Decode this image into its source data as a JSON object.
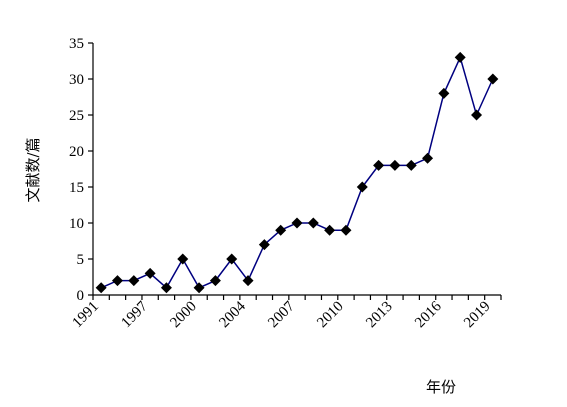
{
  "chart_data": {
    "type": "line",
    "x_label": "年份",
    "y_label": "文献数/篇",
    "categories": [
      "1991",
      null,
      null,
      "1997",
      null,
      null,
      "2000",
      null,
      null,
      "2004",
      null,
      null,
      "2007",
      null,
      null,
      "2010",
      null,
      null,
      "2013",
      null,
      null,
      "2016",
      null,
      null,
      "2019"
    ],
    "series": [
      {
        "color": "#000080",
        "marker_color": "#000000",
        "values": [
          1,
          2,
          2,
          3,
          1,
          5,
          1,
          2,
          5,
          2,
          7,
          9,
          10,
          10,
          9,
          9,
          15,
          18,
          18,
          18,
          19,
          28,
          33,
          25,
          30
        ]
      }
    ],
    "ylim": [
      0,
      35
    ],
    "yticks": [
      0,
      5,
      10,
      15,
      20,
      25,
      30,
      35
    ],
    "grid": false
  }
}
